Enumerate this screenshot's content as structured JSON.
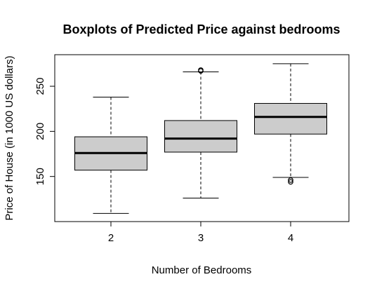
{
  "chart_data": {
    "type": "boxplot",
    "title": "Boxplots of Predicted Price against bedrooms",
    "xlabel": "Number of Bedrooms",
    "ylabel": "Price of House (in 1000 US dollars)",
    "categories": [
      "2",
      "3",
      "4"
    ],
    "ylim": [
      100,
      285
    ],
    "yticks": [
      150,
      200,
      250
    ],
    "boxes": [
      {
        "category": "2",
        "whisker_low": 109,
        "q1": 157,
        "median": 176,
        "q3": 194,
        "whisker_high": 238,
        "outliers": []
      },
      {
        "category": "3",
        "whisker_low": 126,
        "q1": 177,
        "median": 192,
        "q3": 212,
        "whisker_high": 266,
        "outliers": [
          267,
          268
        ]
      },
      {
        "category": "4",
        "whisker_low": 149,
        "q1": 197,
        "median": 216,
        "q3": 231,
        "whisker_high": 275,
        "outliers": [
          144,
          146
        ]
      }
    ],
    "box_fill": "#cccccc",
    "grid": false
  }
}
